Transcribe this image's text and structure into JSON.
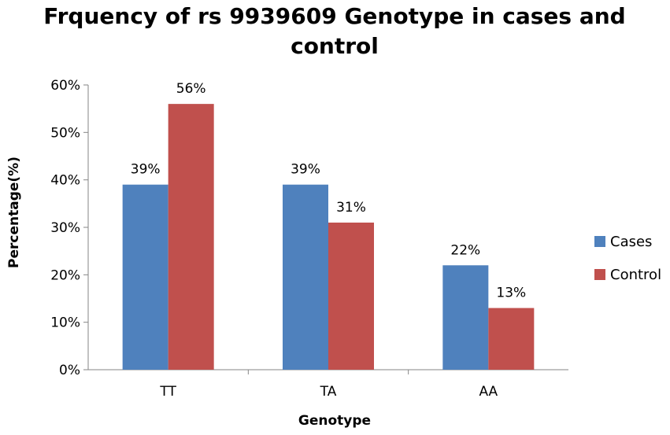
{
  "chart_data": {
    "type": "bar",
    "title_line1": "Frquency of rs 9939609 Genotype in cases and",
    "title_line2": "control",
    "xlabel": "Genotype",
    "ylabel": "Percentage(%)",
    "categories": [
      "TT",
      "TA",
      "AA"
    ],
    "series": [
      {
        "name": "Cases",
        "values": [
          39,
          39,
          22
        ],
        "labels": [
          "39%",
          "39%",
          "22%"
        ],
        "color": "#4F81BD"
      },
      {
        "name": "Control",
        "values": [
          56,
          31,
          13
        ],
        "labels": [
          "56%",
          "31%",
          "13%"
        ],
        "color": "#C0504D"
      }
    ],
    "ylim": [
      0,
      60
    ],
    "yticks": [
      "0%",
      "10%",
      "20%",
      "30%",
      "40%",
      "50%",
      "60%"
    ],
    "grid": false,
    "legend_position": "right"
  }
}
